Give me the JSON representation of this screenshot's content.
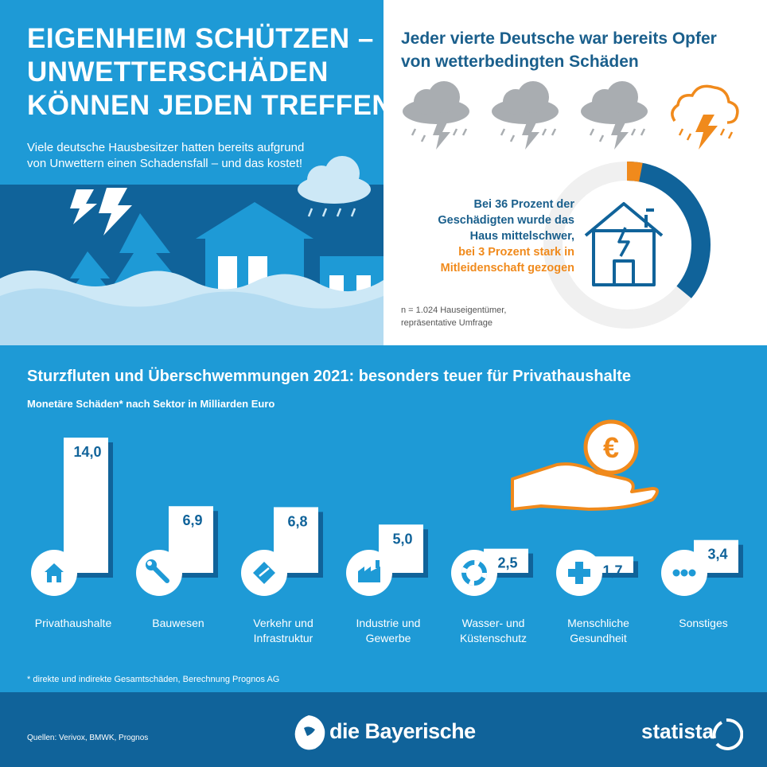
{
  "hero": {
    "title_lines": [
      "EIGENHEIM SCHÜTZEN –",
      "UNWETTERSCHÄDEN",
      "KÖNNEN JEDEN TREFFEN"
    ],
    "subtitle_lines": [
      "Viele deutsche Hausbesitzer hatten bereits aufgrund",
      "von Unwettern einen Schadensfall – und das kostet!"
    ]
  },
  "survey": {
    "title_lines": [
      "Jeder vierte Deutsche war bereits Opfer",
      "von wetterbedingten Schäden"
    ],
    "icons": [
      "storm-cloud-icon",
      "storm-cloud-icon",
      "storm-cloud-icon",
      "storm-cloud-highlight-icon"
    ],
    "callout_blue": [
      "Bei 36 Prozent der",
      "Geschädigten wurde das",
      "Haus mittelschwer,"
    ],
    "callout_orange": [
      "bei 3 Prozent stark in",
      "Mitleidenschaft gezogen"
    ],
    "donut": {
      "medium_percent": 36,
      "severe_percent": 3
    },
    "note_lines": [
      "n = 1.024 Hauseigentümer,",
      "repräsentative Umfrage"
    ]
  },
  "chart_data": {
    "type": "bar",
    "title": "Sturzfluten und Überschwemmungen 2021: besonders teuer für Privathaushalte",
    "subtitle": "Monetäre Schäden* nach Sektor in Milliarden Euro",
    "categories": [
      "Privathaushalte",
      "Bauwesen",
      "Verkehr und Infrastruktur",
      "Industrie und Gewerbe",
      "Wasser- und Küstenschutz",
      "Menschliche Gesundheit",
      "Sonstiges"
    ],
    "category_lines": [
      [
        "Privathaushalte"
      ],
      [
        "Bauwesen"
      ],
      [
        "Verkehr und",
        "Infrastruktur"
      ],
      [
        "Industrie und",
        "Gewerbe"
      ],
      [
        "Wasser- und",
        "Küstenschutz"
      ],
      [
        "Menschliche",
        "Gesundheit"
      ],
      [
        "Sonstiges"
      ]
    ],
    "values": [
      14.0,
      6.9,
      6.8,
      5.0,
      2.5,
      1.7,
      3.4
    ],
    "value_labels": [
      "14,0",
      "6,9",
      "6,8",
      "5,0",
      "2,5",
      "1,7",
      "3,4"
    ],
    "icons": [
      "house-icon",
      "wrench-icon",
      "road-sign-icon",
      "factory-icon",
      "lifebuoy-icon",
      "medical-cross-icon",
      "more-dots-icon"
    ],
    "ylim": [
      0,
      14
    ]
  },
  "footnote": "* direkte und indirekte Gesamtschäden, Berechnung Prognos AG",
  "footer": {
    "sources": "Quellen: Verivox, BMWK, Prognos",
    "brand": "die Bayerische",
    "statista": "statista"
  },
  "colors": {
    "primary_blue": "#1e9ad6",
    "dark_blue": "#10639a",
    "title_blue": "#1a5f8c",
    "accent_orange": "#f08a1c",
    "light_blue": "#cde8f6"
  }
}
